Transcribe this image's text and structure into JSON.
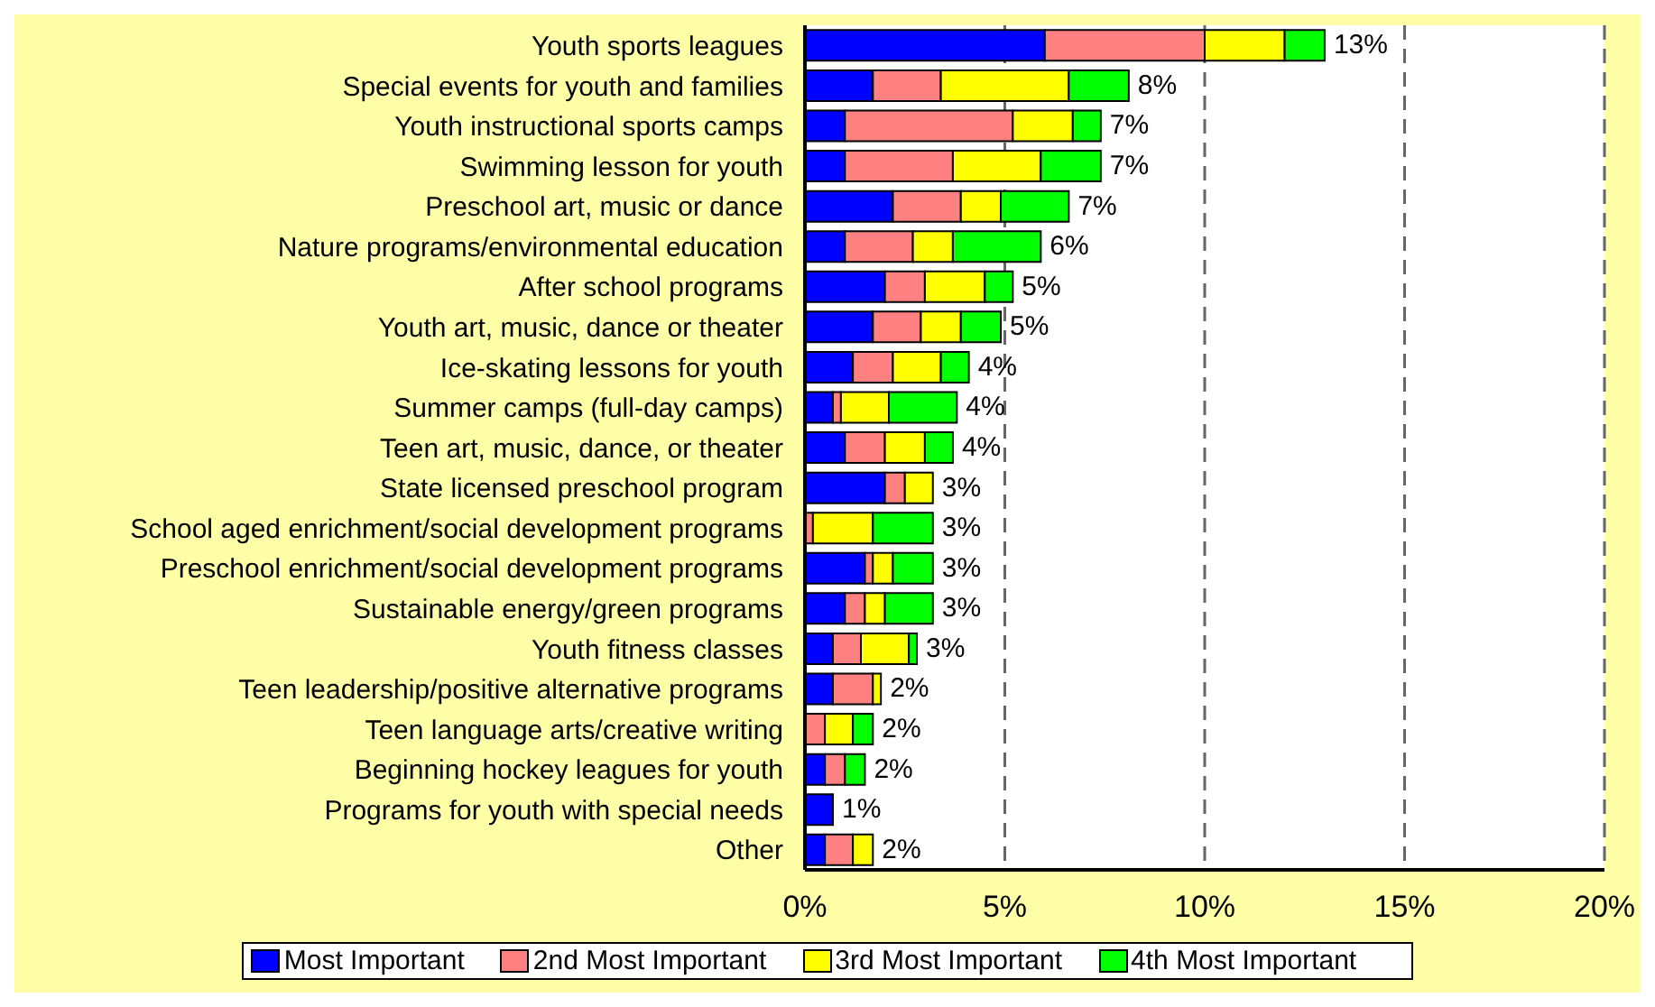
{
  "chart_data": {
    "type": "bar",
    "orientation": "horizontal",
    "stacked": true,
    "categories": [
      "Youth sports leagues",
      "Special events for youth and families",
      "Youth instructional sports camps",
      "Swimming lesson for youth",
      "Preschool art, music or dance",
      "Nature programs/environmental education",
      "After school programs",
      "Youth art, music, dance or theater",
      "Ice-skating lessons for youth",
      "Summer camps (full-day camps)",
      "Teen art, music, dance, or theater",
      "State licensed preschool program",
      "School aged enrichment/social development programs",
      "Preschool enrichment/social development programs",
      "Sustainable energy/green programs",
      "Youth fitness classes",
      "Teen leadership/positive alternative programs",
      "Teen language arts/creative writing",
      "Beginning hockey leagues for youth",
      "Programs for youth with special needs",
      "Other"
    ],
    "series": [
      {
        "name": "Most Important",
        "color": "#0000ff",
        "values": [
          6,
          1.7,
          1,
          1,
          2.2,
          1,
          2,
          1.7,
          1.2,
          0.7,
          1,
          2,
          0,
          1.5,
          1,
          0.7,
          0.7,
          0,
          0.5,
          0.7,
          0.5
        ]
      },
      {
        "name": "2nd Most Important",
        "color": "#ff8080",
        "values": [
          4,
          1.7,
          4.2,
          2.7,
          1.7,
          1.7,
          1,
          1.2,
          1,
          0.2,
          1,
          0.5,
          0.2,
          0.2,
          0.5,
          0.7,
          1,
          0.5,
          0.5,
          0,
          0.7
        ]
      },
      {
        "name": "3rd Most Important",
        "color": "#ffff00",
        "values": [
          2,
          3.2,
          1.5,
          2.2,
          1,
          1,
          1.5,
          1,
          1.2,
          1.2,
          1,
          0.7,
          1.5,
          0.5,
          0.5,
          1.2,
          0.2,
          0.7,
          0,
          0,
          0.5
        ]
      },
      {
        "name": "4th Most Important",
        "color": "#00ff00",
        "values": [
          1,
          1.5,
          0.7,
          1.5,
          1.7,
          2.2,
          0.7,
          1,
          0.7,
          1.7,
          0.7,
          0,
          1.5,
          1,
          1.2,
          0.2,
          0,
          0.5,
          0.5,
          0,
          0
        ]
      }
    ],
    "totals": [
      "13%",
      "8%",
      "7%",
      "7%",
      "7%",
      "6%",
      "5%",
      "5%",
      "4%",
      "4%",
      "4%",
      "3%",
      "3%",
      "3%",
      "3%",
      "3%",
      "2%",
      "2%",
      "2%",
      "1%",
      "2%"
    ],
    "xlim": [
      0,
      20
    ],
    "xticks": [
      {
        "value": 0,
        "label": "0%"
      },
      {
        "value": 5,
        "label": "5%"
      },
      {
        "value": 10,
        "label": "10%"
      },
      {
        "value": 15,
        "label": "15%"
      },
      {
        "value": 20,
        "label": "20%"
      }
    ],
    "grid": "x",
    "legend": "bottom"
  }
}
